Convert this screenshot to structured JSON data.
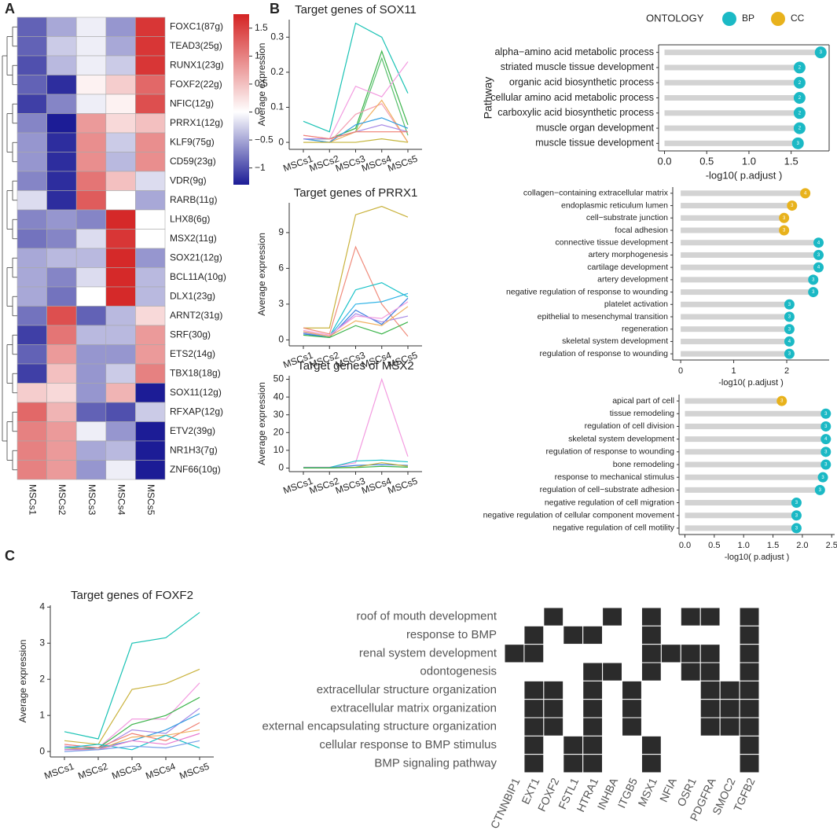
{
  "panels": [
    "A",
    "B",
    "C"
  ],
  "chart_data": [
    {
      "type": "heatmap",
      "rows": [
        "FOXC1(87g)",
        "TEAD3(25g)",
        "RUNX1(23g)",
        "FOXF2(22g)",
        "NFIC(12g)",
        "PRRX1(12g)",
        "KLF9(75g)",
        "CD59(23g)",
        "VDR(9g)",
        "RARB(11g)",
        "LHX8(6g)",
        "MSX2(11g)",
        "SOX21(12g)",
        "BCL11A(10g)",
        "DLX1(23g)",
        "ARNT2(31g)",
        "SRF(30g)",
        "ETS2(14g)",
        "TBX18(18g)",
        "SOX11(12g)",
        "RFXAP(12g)",
        "ETV2(39g)",
        "NR1H3(7g)",
        "ZNF66(10g)"
      ],
      "columns": [
        "MSCs1",
        "MSCs2",
        "MSCs3",
        "MSCs4",
        "MSCs5"
      ],
      "values": [
        [
          -0.9,
          -0.5,
          -0.1,
          -0.6,
          1.6
        ],
        [
          -0.9,
          -0.3,
          -0.1,
          -0.5,
          1.6
        ],
        [
          -1.0,
          -0.4,
          -0.1,
          -0.3,
          1.6
        ],
        [
          -0.9,
          -1.2,
          0.1,
          0.4,
          1.2
        ],
        [
          -1.1,
          -0.7,
          -0.1,
          0.1,
          1.4
        ],
        [
          -0.7,
          -1.3,
          0.8,
          0.3,
          0.5
        ],
        [
          -0.6,
          -1.2,
          0.9,
          -0.3,
          0.9
        ],
        [
          -0.6,
          -1.2,
          0.9,
          -0.4,
          0.9
        ],
        [
          -0.7,
          -1.2,
          1.1,
          0.5,
          -0.2
        ],
        [
          -0.2,
          -1.2,
          1.3,
          0.0,
          -0.5
        ],
        [
          -0.7,
          -0.6,
          -0.7,
          1.7,
          0.0
        ],
        [
          -0.8,
          -0.7,
          -0.2,
          1.6,
          0.0
        ],
        [
          -0.5,
          -0.4,
          -0.4,
          1.7,
          -0.6
        ],
        [
          -0.5,
          -0.7,
          -0.2,
          1.7,
          -0.4
        ],
        [
          -0.5,
          -0.8,
          0.0,
          1.7,
          -0.4
        ],
        [
          -0.8,
          1.4,
          -0.9,
          -0.4,
          0.3
        ],
        [
          -1.1,
          1.1,
          -0.4,
          -0.4,
          0.8
        ],
        [
          -0.9,
          0.8,
          -0.6,
          -0.6,
          0.8
        ],
        [
          -1.1,
          0.5,
          -0.6,
          -0.3,
          1.0
        ],
        [
          0.4,
          0.3,
          -0.6,
          0.6,
          -1.3
        ],
        [
          1.2,
          0.6,
          -0.9,
          -1.0,
          -0.3
        ],
        [
          1.0,
          0.8,
          -0.1,
          -0.6,
          -1.3
        ],
        [
          1.0,
          0.8,
          -0.5,
          -0.4,
          -1.3
        ],
        [
          1.0,
          0.8,
          -0.6,
          -0.1,
          -1.3
        ]
      ],
      "zlim": [
        -1.3,
        1.75
      ],
      "zticks": [
        1.5,
        1,
        0.5,
        0,
        {
          "value": -0.5,
          "label": "−0.5"
        },
        {
          "value": -1,
          "label": "−1"
        }
      ],
      "colors": {
        "low": "#1c1c96",
        "mid": "#ffffff",
        "high": "#d42323"
      }
    },
    {
      "type": "line",
      "title": "Target genes of SOX11",
      "ylabel": "Average expression",
      "categories": [
        "MSCs1",
        "MSCs2",
        "MSCs3",
        "MSCs4",
        "MSCs5"
      ],
      "ylim": [
        -0.02,
        0.35
      ],
      "yticks": [
        0,
        0.1,
        0.2,
        0.3
      ],
      "series": [
        {
          "color": "#19c2b4",
          "values": [
            0.06,
            0.03,
            0.34,
            0.3,
            0.14
          ]
        },
        {
          "color": "#3cb44b",
          "values": [
            0.01,
            0.01,
            0.04,
            0.26,
            0.05
          ]
        },
        {
          "color": "#56c16b",
          "values": [
            0.01,
            0.01,
            0.03,
            0.24,
            0.02
          ]
        },
        {
          "color": "#f39be0",
          "values": [
            0.02,
            0.01,
            0.16,
            0.13,
            0.23
          ]
        },
        {
          "color": "#f4a0b4",
          "values": [
            0.01,
            0.0,
            0.08,
            0.11,
            0.0
          ]
        },
        {
          "color": "#f0b060",
          "values": [
            0.0,
            0.0,
            0.03,
            0.12,
            0.0
          ]
        },
        {
          "color": "#2f9de0",
          "values": [
            0.01,
            0.0,
            0.05,
            0.07,
            0.04
          ]
        },
        {
          "color": "#a98be6",
          "values": [
            0.01,
            0.01,
            0.03,
            0.05,
            0.03
          ]
        },
        {
          "color": "#c4b53a",
          "values": [
            0.0,
            0.0,
            0.0,
            0.01,
            0.0
          ]
        },
        {
          "color": "#ef7f72",
          "values": [
            0.02,
            0.01,
            0.03,
            0.03,
            0.03
          ]
        }
      ]
    },
    {
      "type": "lollipop",
      "xlabel": "-log10( p.adjust )",
      "ylabel": "Pathway",
      "legend": {
        "title": "ONTOLOGY",
        "entries": [
          "BP",
          "CC"
        ]
      },
      "ontology_colors": {
        "BP": "#1bb9c5",
        "CC": "#e8b21c"
      },
      "categories": [
        "alpha−amino acid metabolic process",
        "striated muscle tissue development",
        "organic acid biosynthetic process",
        "cellular amino acid metabolic process",
        "carboxylic acid biosynthetic process",
        "muscle organ development",
        "muscle tissue development"
      ],
      "ontology": [
        "BP",
        "BP",
        "BP",
        "BP",
        "BP",
        "BP",
        "BP"
      ],
      "values": [
        1.85,
        1.6,
        1.6,
        1.6,
        1.6,
        1.6,
        1.58
      ],
      "counts": [
        3,
        2,
        2,
        2,
        2,
        2,
        3
      ],
      "xlim": [
        -0.07,
        1.95
      ],
      "xticks": [
        {
          "value": 0,
          "label": "0.0"
        },
        0.5,
        {
          "value": 1,
          "label": "1.0"
        },
        1.5
      ]
    },
    {
      "type": "line",
      "title": "Target genes of PRRX1",
      "ylabel": "Average expression",
      "categories": [
        "MSCs1",
        "MSCs2",
        "MSCs3",
        "MSCs4",
        "MSCs5"
      ],
      "ylim": [
        -0.5,
        11.5
      ],
      "yticks": [
        0,
        3,
        6,
        9
      ],
      "series": [
        {
          "color": "#c9b23c",
          "values": [
            1.0,
            1.0,
            10.5,
            11.2,
            10.3
          ]
        },
        {
          "color": "#f08c7c",
          "values": [
            1.0,
            0.5,
            7.8,
            3.0,
            0.3
          ]
        },
        {
          "color": "#19c2c8",
          "values": [
            0.5,
            0.3,
            4.2,
            4.8,
            3.6
          ]
        },
        {
          "color": "#2fb3e6",
          "values": [
            0.6,
            0.3,
            3.0,
            3.2,
            3.9
          ]
        },
        {
          "color": "#3c7fe0",
          "values": [
            0.5,
            0.2,
            2.5,
            1.3,
            3.5
          ]
        },
        {
          "color": "#a98be6",
          "values": [
            0.6,
            0.3,
            2.2,
            1.5,
            2.0
          ]
        },
        {
          "color": "#f39be0",
          "values": [
            0.8,
            0.4,
            2.0,
            1.8,
            3.2
          ]
        },
        {
          "color": "#3cb44b",
          "values": [
            0.4,
            0.2,
            1.2,
            0.5,
            1.5
          ]
        },
        {
          "color": "#f0b060",
          "values": [
            0.7,
            0.3,
            1.6,
            1.2,
            2.8
          ]
        }
      ]
    },
    {
      "type": "lollipop",
      "xlabel": "-log10( p.adjust )",
      "ontology_colors": {
        "BP": "#1bb9c5",
        "CC": "#e8b21c"
      },
      "categories": [
        "collagen−containing extracellular matrix",
        "endoplasmic reticulum lumen",
        "cell−substrate junction",
        "focal adhesion",
        "connective tissue development",
        "artery morphogenesis",
        "cartilage development",
        "artery development",
        "negative regulation of response to wounding",
        "platelet activation",
        "epithelial to mesenchymal transition",
        "regeneration",
        "skeletal system development",
        "regulation of response to wounding"
      ],
      "ontology": [
        "CC",
        "CC",
        "CC",
        "CC",
        "BP",
        "BP",
        "BP",
        "BP",
        "BP",
        "BP",
        "BP",
        "BP",
        "BP",
        "BP"
      ],
      "values": [
        2.35,
        2.1,
        1.95,
        1.95,
        2.6,
        2.6,
        2.6,
        2.5,
        2.5,
        2.05,
        2.05,
        2.05,
        2.05,
        2.05
      ],
      "counts": [
        4,
        3,
        3,
        3,
        4,
        3,
        4,
        3,
        3,
        3,
        3,
        3,
        4,
        3
      ],
      "xlim": [
        -0.15,
        2.8
      ],
      "xticks": [
        0,
        1,
        2
      ]
    },
    {
      "type": "line",
      "title": "Target genes of MSX2",
      "ylabel": "Average expression",
      "categories": [
        "MSCs1",
        "MSCs2",
        "MSCs3",
        "MSCs4",
        "MSCs5"
      ],
      "ylim": [
        -2,
        52
      ],
      "yticks": [
        0,
        10,
        20,
        30,
        40,
        50
      ],
      "series": [
        {
          "color": "#f39be0",
          "values": [
            0.5,
            0.5,
            3,
            50,
            6.5
          ]
        },
        {
          "color": "#19c2c8",
          "values": [
            0.3,
            0.3,
            4,
            4.5,
            3.5
          ]
        },
        {
          "color": "#3c7fe0",
          "values": [
            0.2,
            0.2,
            1.5,
            2,
            1.5
          ]
        },
        {
          "color": "#c9b23c",
          "values": [
            0.1,
            0.1,
            0.5,
            3,
            1
          ]
        },
        {
          "color": "#3cb44b",
          "values": [
            0.1,
            0.1,
            0.3,
            1,
            0.5
          ]
        }
      ]
    },
    {
      "type": "lollipop",
      "xlabel": "-log10( p.adjust )",
      "ontology_colors": {
        "BP": "#1bb9c5",
        "CC": "#e8b21c"
      },
      "categories": [
        "apical part of cell",
        "tissue remodeling",
        "regulation of cell division",
        "skeletal system development",
        "regulation of response to wounding",
        "bone remodeling",
        "response to mechanical stimulus",
        "regulation of cell−substrate adhesion",
        "negative regulation of cell migration",
        "negative regulation of cellular component movement",
        "negative regulation of cell motility"
      ],
      "ontology": [
        "CC",
        "BP",
        "BP",
        "BP",
        "BP",
        "BP",
        "BP",
        "BP",
        "BP",
        "BP",
        "BP"
      ],
      "values": [
        1.65,
        2.4,
        2.4,
        2.4,
        2.4,
        2.4,
        2.35,
        2.3,
        1.9,
        1.9,
        1.9
      ],
      "counts": [
        3,
        3,
        3,
        4,
        3,
        3,
        3,
        3,
        3,
        3,
        3
      ],
      "xlim": [
        -0.1,
        2.55
      ],
      "xticks": [
        {
          "value": 0,
          "label": "0.0"
        },
        0.5,
        {
          "value": 1,
          "label": "1.0"
        },
        1.5,
        {
          "value": 2,
          "label": "2.0"
        },
        2.5
      ]
    },
    {
      "type": "line",
      "title": "Target genes of FOXF2",
      "ylabel": "Average expression",
      "categories": [
        "MSCs1",
        "MSCs2",
        "MSCs3",
        "MSCs4",
        "MSCs5"
      ],
      "ylim": [
        -0.15,
        4.05
      ],
      "yticks": [
        0,
        1,
        2,
        3,
        4
      ],
      "series": [
        {
          "color": "#19c2b4",
          "values": [
            0.55,
            0.35,
            3.0,
            3.15,
            3.85
          ]
        },
        {
          "color": "#c9b23c",
          "values": [
            0.3,
            0.2,
            1.72,
            1.88,
            2.28
          ]
        },
        {
          "color": "#f39be0",
          "values": [
            0.2,
            0.1,
            0.9,
            0.9,
            1.9
          ]
        },
        {
          "color": "#3cb44b",
          "values": [
            0.1,
            0.1,
            0.75,
            1.0,
            1.5
          ]
        },
        {
          "color": "#a98be6",
          "values": [
            0.15,
            0.05,
            0.6,
            0.5,
            1.2
          ]
        },
        {
          "color": "#2f9de0",
          "values": [
            0.05,
            0.1,
            0.3,
            0.6,
            1.05
          ]
        },
        {
          "color": "#ef7f72",
          "values": [
            0.2,
            0.1,
            0.5,
            0.3,
            0.8
          ]
        },
        {
          "color": "#f0b060",
          "values": [
            0.1,
            0.05,
            0.4,
            0.45,
            0.6
          ]
        },
        {
          "color": "#19c2c8",
          "values": [
            0.1,
            0.2,
            0.05,
            0.45,
            0.1
          ]
        },
        {
          "color": "#e87ad0",
          "values": [
            0.05,
            0.05,
            0.3,
            0.2,
            0.5
          ]
        },
        {
          "color": "#7aa0e8",
          "values": [
            0.0,
            0.05,
            0.15,
            0.1,
            0.3
          ]
        }
      ]
    },
    {
      "type": "matrix",
      "rows": [
        "roof of mouth development",
        "response to BMP",
        "renal system development",
        "odontogenesis",
        "extracellular structure organization",
        "extracellular matrix organization",
        "external encapsulating structure organization",
        "cellular response to BMP stimulus",
        "BMP signaling pathway"
      ],
      "columns": [
        "CTNNBIP1",
        "EXT1",
        "FOXF2",
        "FSTL1",
        "HTRA1",
        "INHBA",
        "ITGB5",
        "MSX1",
        "NFIA",
        "OSR1",
        "PDGFRA",
        "SMOC2",
        "TGFB2"
      ],
      "values": [
        [
          0,
          0,
          1,
          0,
          0,
          1,
          0,
          1,
          0,
          1,
          1,
          0,
          1
        ],
        [
          0,
          1,
          0,
          1,
          1,
          0,
          0,
          1,
          0,
          0,
          0,
          0,
          1
        ],
        [
          1,
          1,
          0,
          0,
          0,
          0,
          0,
          1,
          1,
          1,
          1,
          0,
          1
        ],
        [
          0,
          0,
          0,
          0,
          1,
          1,
          0,
          1,
          0,
          1,
          1,
          0,
          1
        ],
        [
          0,
          1,
          1,
          0,
          1,
          0,
          1,
          0,
          0,
          0,
          1,
          1,
          1
        ],
        [
          0,
          1,
          1,
          0,
          1,
          0,
          1,
          0,
          0,
          0,
          1,
          1,
          1
        ],
        [
          0,
          1,
          1,
          0,
          1,
          0,
          1,
          0,
          0,
          0,
          1,
          1,
          1
        ],
        [
          0,
          1,
          0,
          1,
          1,
          0,
          0,
          1,
          0,
          0,
          0,
          0,
          1
        ],
        [
          0,
          1,
          0,
          1,
          1,
          0,
          0,
          1,
          0,
          0,
          0,
          0,
          1
        ]
      ],
      "color": "#2b2b2b"
    }
  ]
}
